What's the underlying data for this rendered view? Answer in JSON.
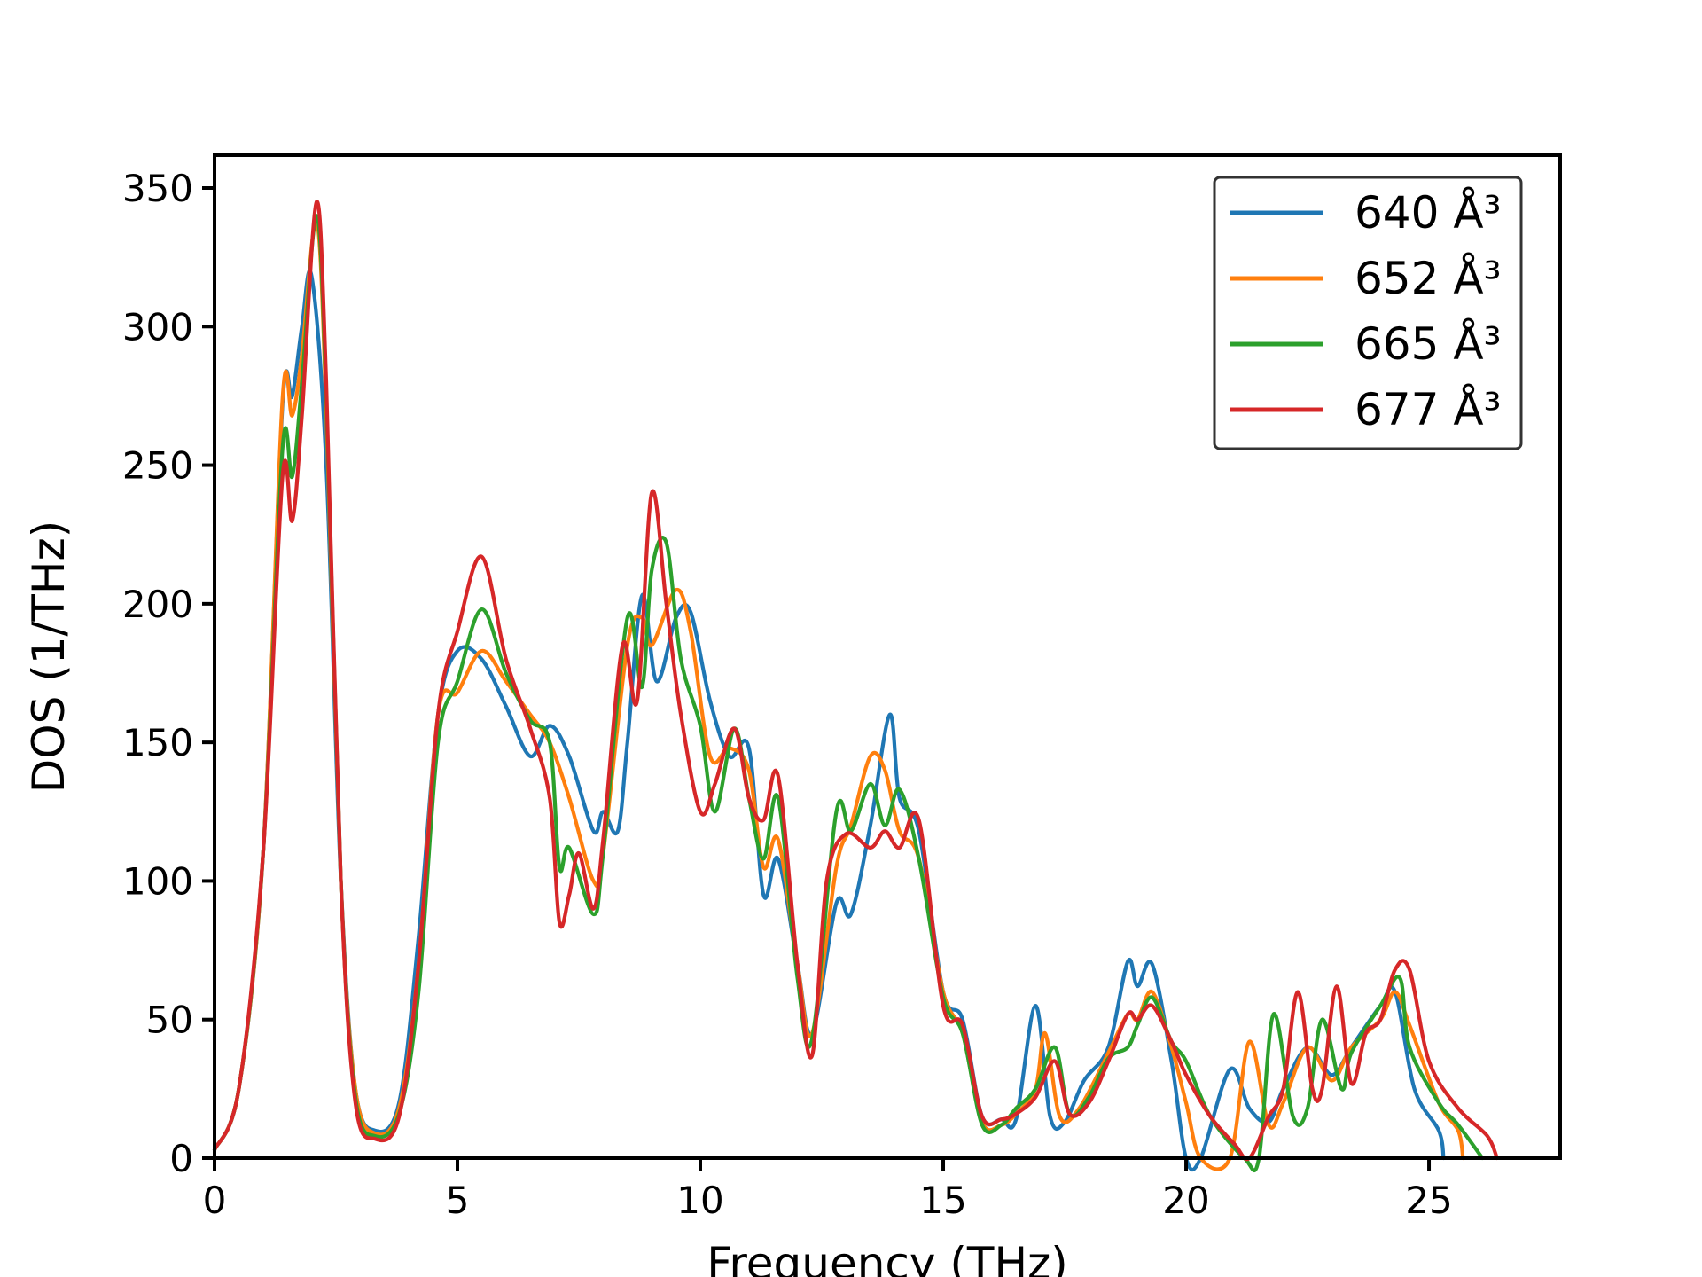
{
  "chart_data": {
    "type": "line",
    "title": "",
    "xlabel": "Frequency (THz)",
    "ylabel": "DOS (1/THz)",
    "xlim": [
      0,
      27.7
    ],
    "ylim": [
      0,
      350
    ],
    "xticks": [
      0,
      5,
      10,
      15,
      20,
      25
    ],
    "yticks": [
      0,
      50,
      100,
      150,
      200,
      250,
      300,
      350
    ],
    "grid": false,
    "legend_position": "top-right",
    "series": [
      {
        "name": "640 Å³",
        "color": "#1f77b4",
        "points": [
          [
            0,
            3
          ],
          [
            0.5,
            25
          ],
          [
            1.0,
            110
          ],
          [
            1.4,
            272
          ],
          [
            1.6,
            275
          ],
          [
            1.8,
            300
          ],
          [
            2.0,
            318
          ],
          [
            2.3,
            250
          ],
          [
            2.6,
            100
          ],
          [
            2.9,
            25
          ],
          [
            3.3,
            10
          ],
          [
            3.8,
            20
          ],
          [
            4.2,
            80
          ],
          [
            4.6,
            160
          ],
          [
            5.0,
            183
          ],
          [
            5.5,
            180
          ],
          [
            6.0,
            163
          ],
          [
            6.5,
            145
          ],
          [
            6.9,
            156
          ],
          [
            7.3,
            145
          ],
          [
            7.8,
            118
          ],
          [
            8.0,
            125
          ],
          [
            8.3,
            118
          ],
          [
            8.5,
            150
          ],
          [
            8.8,
            203
          ],
          [
            9.1,
            172
          ],
          [
            9.5,
            195
          ],
          [
            9.8,
            197
          ],
          [
            10.2,
            165
          ],
          [
            10.6,
            145
          ],
          [
            11.0,
            148
          ],
          [
            11.3,
            95
          ],
          [
            11.6,
            108
          ],
          [
            12.0,
            70
          ],
          [
            12.3,
            45
          ],
          [
            12.8,
            92
          ],
          [
            13.1,
            88
          ],
          [
            13.5,
            120
          ],
          [
            13.9,
            160
          ],
          [
            14.1,
            130
          ],
          [
            14.5,
            118
          ],
          [
            15.0,
            60
          ],
          [
            15.4,
            50
          ],
          [
            15.8,
            15
          ],
          [
            16.2,
            14
          ],
          [
            16.5,
            14
          ],
          [
            16.9,
            55
          ],
          [
            17.2,
            15
          ],
          [
            17.5,
            13
          ],
          [
            17.9,
            28
          ],
          [
            18.4,
            40
          ],
          [
            18.8,
            71
          ],
          [
            19.0,
            62
          ],
          [
            19.3,
            70
          ],
          [
            19.7,
            35
          ],
          [
            20.0,
            0
          ],
          [
            20.3,
            0
          ],
          [
            20.9,
            32
          ],
          [
            21.3,
            18
          ],
          [
            21.7,
            13
          ],
          [
            22.0,
            25
          ],
          [
            22.5,
            40
          ],
          [
            23.0,
            30
          ],
          [
            23.4,
            40
          ],
          [
            24.0,
            55
          ],
          [
            24.3,
            60
          ],
          [
            24.7,
            25
          ],
          [
            25.2,
            10
          ],
          [
            25.3,
            0
          ]
        ]
      },
      {
        "name": "652 Å³",
        "color": "#ff7f0e",
        "points": [
          [
            0,
            3
          ],
          [
            0.5,
            25
          ],
          [
            1.0,
            110
          ],
          [
            1.4,
            274
          ],
          [
            1.6,
            268
          ],
          [
            1.8,
            290
          ],
          [
            2.1,
            338
          ],
          [
            2.3,
            270
          ],
          [
            2.6,
            100
          ],
          [
            2.9,
            25
          ],
          [
            3.3,
            9
          ],
          [
            3.8,
            18
          ],
          [
            4.2,
            70
          ],
          [
            4.6,
            160
          ],
          [
            5.0,
            168
          ],
          [
            5.5,
            183
          ],
          [
            6.0,
            172
          ],
          [
            6.5,
            160
          ],
          [
            6.9,
            150
          ],
          [
            7.3,
            130
          ],
          [
            7.8,
            100
          ],
          [
            8.0,
            110
          ],
          [
            8.5,
            185
          ],
          [
            8.8,
            195
          ],
          [
            9.0,
            185
          ],
          [
            9.5,
            205
          ],
          [
            9.8,
            190
          ],
          [
            10.2,
            145
          ],
          [
            10.6,
            148
          ],
          [
            11.0,
            140
          ],
          [
            11.3,
            105
          ],
          [
            11.6,
            115
          ],
          [
            12.0,
            70
          ],
          [
            12.3,
            45
          ],
          [
            12.8,
            105
          ],
          [
            13.1,
            120
          ],
          [
            13.5,
            145
          ],
          [
            13.8,
            140
          ],
          [
            14.1,
            118
          ],
          [
            14.5,
            108
          ],
          [
            15.0,
            60
          ],
          [
            15.4,
            45
          ],
          [
            15.8,
            13
          ],
          [
            16.2,
            12
          ],
          [
            16.5,
            16
          ],
          [
            16.9,
            25
          ],
          [
            17.1,
            45
          ],
          [
            17.4,
            15
          ],
          [
            17.8,
            18
          ],
          [
            18.4,
            38
          ],
          [
            18.8,
            52
          ],
          [
            19.0,
            50
          ],
          [
            19.3,
            60
          ],
          [
            19.7,
            40
          ],
          [
            20.0,
            20
          ],
          [
            20.3,
            0
          ],
          [
            20.9,
            0
          ],
          [
            21.3,
            42
          ],
          [
            21.7,
            12
          ],
          [
            22.0,
            20
          ],
          [
            22.5,
            40
          ],
          [
            23.0,
            28
          ],
          [
            23.4,
            40
          ],
          [
            24.0,
            50
          ],
          [
            24.3,
            60
          ],
          [
            24.6,
            48
          ],
          [
            25.2,
            20
          ],
          [
            25.6,
            10
          ],
          [
            25.7,
            0
          ]
        ]
      },
      {
        "name": "665 Å³",
        "color": "#2ca02c",
        "points": [
          [
            0,
            3
          ],
          [
            0.5,
            25
          ],
          [
            1.0,
            110
          ],
          [
            1.4,
            256
          ],
          [
            1.6,
            246
          ],
          [
            1.8,
            280
          ],
          [
            2.1,
            340
          ],
          [
            2.3,
            275
          ],
          [
            2.6,
            100
          ],
          [
            2.9,
            22
          ],
          [
            3.3,
            8
          ],
          [
            3.8,
            16
          ],
          [
            4.2,
            60
          ],
          [
            4.6,
            150
          ],
          [
            5.0,
            172
          ],
          [
            5.5,
            198
          ],
          [
            6.0,
            175
          ],
          [
            6.5,
            158
          ],
          [
            6.9,
            150
          ],
          [
            7.1,
            105
          ],
          [
            7.3,
            112
          ],
          [
            7.8,
            88
          ],
          [
            8.0,
            110
          ],
          [
            8.5,
            195
          ],
          [
            8.8,
            170
          ],
          [
            9.0,
            212
          ],
          [
            9.3,
            222
          ],
          [
            9.6,
            180
          ],
          [
            10.0,
            156
          ],
          [
            10.3,
            125
          ],
          [
            10.7,
            155
          ],
          [
            11.0,
            130
          ],
          [
            11.3,
            108
          ],
          [
            11.6,
            130
          ],
          [
            12.0,
            65
          ],
          [
            12.3,
            43
          ],
          [
            12.8,
            125
          ],
          [
            13.1,
            118
          ],
          [
            13.5,
            135
          ],
          [
            13.8,
            120
          ],
          [
            14.1,
            133
          ],
          [
            14.5,
            108
          ],
          [
            15.0,
            58
          ],
          [
            15.4,
            45
          ],
          [
            15.8,
            12
          ],
          [
            16.2,
            12
          ],
          [
            16.5,
            18
          ],
          [
            16.9,
            25
          ],
          [
            17.3,
            40
          ],
          [
            17.6,
            16
          ],
          [
            18.0,
            22
          ],
          [
            18.4,
            36
          ],
          [
            18.8,
            40
          ],
          [
            19.0,
            48
          ],
          [
            19.3,
            58
          ],
          [
            19.7,
            42
          ],
          [
            20.0,
            35
          ],
          [
            20.5,
            15
          ],
          [
            21.2,
            0
          ],
          [
            21.5,
            0
          ],
          [
            21.8,
            52
          ],
          [
            22.2,
            15
          ],
          [
            22.5,
            18
          ],
          [
            22.8,
            50
          ],
          [
            23.2,
            25
          ],
          [
            23.4,
            38
          ],
          [
            24.0,
            55
          ],
          [
            24.4,
            65
          ],
          [
            24.6,
            40
          ],
          [
            25.2,
            20
          ],
          [
            25.6,
            12
          ],
          [
            26.1,
            0
          ]
        ]
      },
      {
        "name": "677 Å³",
        "color": "#d62728",
        "points": [
          [
            0,
            3
          ],
          [
            0.5,
            25
          ],
          [
            1.0,
            110
          ],
          [
            1.4,
            246
          ],
          [
            1.6,
            230
          ],
          [
            1.8,
            268
          ],
          [
            2.1,
            345
          ],
          [
            2.3,
            280
          ],
          [
            2.6,
            100
          ],
          [
            2.9,
            20
          ],
          [
            3.3,
            7
          ],
          [
            3.8,
            15
          ],
          [
            4.2,
            70
          ],
          [
            4.6,
            160
          ],
          [
            5.0,
            190
          ],
          [
            5.5,
            217
          ],
          [
            6.0,
            180
          ],
          [
            6.5,
            155
          ],
          [
            6.9,
            130
          ],
          [
            7.1,
            85
          ],
          [
            7.3,
            95
          ],
          [
            7.5,
            110
          ],
          [
            7.8,
            90
          ],
          [
            8.0,
            115
          ],
          [
            8.4,
            185
          ],
          [
            8.7,
            165
          ],
          [
            9.0,
            240
          ],
          [
            9.3,
            200
          ],
          [
            9.6,
            160
          ],
          [
            10.0,
            125
          ],
          [
            10.3,
            135
          ],
          [
            10.7,
            155
          ],
          [
            11.0,
            130
          ],
          [
            11.3,
            122
          ],
          [
            11.6,
            138
          ],
          [
            12.0,
            70
          ],
          [
            12.3,
            37
          ],
          [
            12.6,
            100
          ],
          [
            13.0,
            117
          ],
          [
            13.5,
            112
          ],
          [
            13.8,
            118
          ],
          [
            14.1,
            112
          ],
          [
            14.5,
            122
          ],
          [
            15.0,
            55
          ],
          [
            15.4,
            48
          ],
          [
            15.8,
            15
          ],
          [
            16.2,
            14
          ],
          [
            16.5,
            16
          ],
          [
            16.9,
            22
          ],
          [
            17.3,
            35
          ],
          [
            17.6,
            16
          ],
          [
            18.0,
            20
          ],
          [
            18.4,
            35
          ],
          [
            18.8,
            52
          ],
          [
            19.0,
            50
          ],
          [
            19.3,
            55
          ],
          [
            19.7,
            42
          ],
          [
            20.0,
            30
          ],
          [
            20.5,
            15
          ],
          [
            21.0,
            5
          ],
          [
            21.3,
            0
          ],
          [
            21.7,
            15
          ],
          [
            22.0,
            25
          ],
          [
            22.3,
            60
          ],
          [
            22.6,
            25
          ],
          [
            22.8,
            25
          ],
          [
            23.1,
            62
          ],
          [
            23.4,
            27
          ],
          [
            23.7,
            45
          ],
          [
            24.0,
            50
          ],
          [
            24.3,
            68
          ],
          [
            24.6,
            68
          ],
          [
            25.0,
            35
          ],
          [
            25.6,
            18
          ],
          [
            26.2,
            8
          ],
          [
            26.4,
            0
          ]
        ]
      }
    ]
  }
}
